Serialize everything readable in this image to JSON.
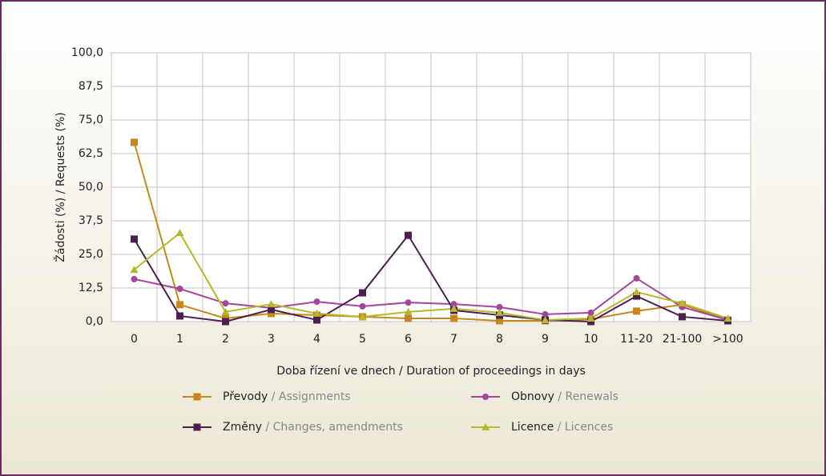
{
  "chart_data": {
    "type": "line",
    "ylabel": "Žádosti (%)  /  Requests (%)",
    "xlabel": "Doba řízení ve dnech / Duration of proceedings in days",
    "categories": [
      "0",
      "1",
      "2",
      "3",
      "4",
      "5",
      "6",
      "7",
      "8",
      "9",
      "10",
      "11-20",
      "21-100",
      ">100"
    ],
    "ylim": [
      0,
      100
    ],
    "yticks": [
      {
        "value": 0,
        "label": "0,0"
      },
      {
        "value": 12.5,
        "label": "12,5"
      },
      {
        "value": 25,
        "label": "25,0"
      },
      {
        "value": 37.5,
        "label": "37,5"
      },
      {
        "value": 50,
        "label": "50,0"
      },
      {
        "value": 62.5,
        "label": "62,5"
      },
      {
        "value": 75,
        "label": "75,0"
      },
      {
        "value": 87.5,
        "label": "87,5"
      },
      {
        "value": 100,
        "label": "100,0"
      }
    ],
    "grid": true,
    "series": [
      {
        "name": "Převody / Assignments",
        "color": "#c8861e",
        "marker": "square",
        "values": [
          66.7,
          6.3,
          1.2,
          3,
          2.4,
          1.8,
          1.2,
          1.2,
          0.3,
          0.3,
          0.9,
          3.9,
          6.3,
          0.6
        ]
      },
      {
        "name": "Obnovy / Renewals",
        "color": "#a2479c",
        "marker": "circle",
        "values": [
          15.8,
          12.2,
          6.8,
          5.1,
          7.4,
          5.7,
          7.1,
          6.5,
          5.4,
          2.7,
          3.3,
          16.1,
          5.4,
          0.6
        ]
      },
      {
        "name": "Změny / Changes, amendments",
        "color": "#4b1f4e",
        "marker": "square",
        "values": [
          30.7,
          2.1,
          0,
          4.5,
          0.6,
          10.7,
          32.1,
          4.2,
          2.4,
          0.6,
          0,
          9.5,
          1.8,
          0.3
        ]
      },
      {
        "name": "Licence / Licences",
        "color": "#b5b82c",
        "marker": "triangle",
        "values": [
          19.3,
          33,
          3.6,
          6.5,
          3,
          1.8,
          3.6,
          4.8,
          3.3,
          0.6,
          1.2,
          11,
          6.8,
          1.2
        ]
      }
    ]
  }
}
